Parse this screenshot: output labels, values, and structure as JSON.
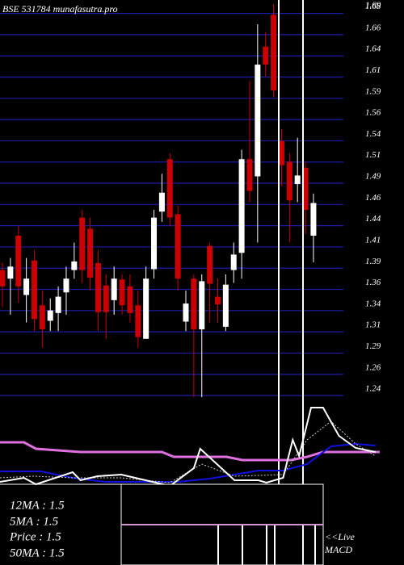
{
  "chart_data": {
    "type": "candlestick",
    "title": "BSE 531784  munafasutra.pro",
    "categories": [
      null,
      null,
      null,
      null,
      null,
      null,
      null,
      null,
      null,
      null,
      null,
      null,
      null,
      null,
      null,
      null,
      null,
      null,
      null,
      null,
      null,
      null,
      null,
      null,
      null,
      null,
      null,
      null,
      null,
      null,
      null,
      null,
      null,
      null,
      null,
      null,
      null,
      null,
      null,
      null
    ],
    "open": [
      1.386,
      1.376,
      1.426,
      1.357,
      1.397,
      1.345,
      1.327,
      1.336,
      1.36,
      1.386,
      1.447,
      1.434,
      1.394,
      1.368,
      1.351,
      1.375,
      1.367,
      1.345,
      1.306,
      1.387,
      1.454,
      1.515,
      1.451,
      1.326,
      1.376,
      1.317,
      1.414,
      1.355,
      1.32,
      1.386,
      1.406,
      1.515,
      1.495,
      1.646,
      1.683,
      1.536,
      1.512,
      1.486,
      1.505,
      1.426
    ],
    "high": [
      1.395,
      1.4,
      1.437,
      1.4,
      1.409,
      1.362,
      1.353,
      1.367,
      1.39,
      1.418,
      1.456,
      1.447,
      1.409,
      1.381,
      1.39,
      1.381,
      1.381,
      1.362,
      1.39,
      1.456,
      1.498,
      1.522,
      1.461,
      1.362,
      1.381,
      1.381,
      1.418,
      1.376,
      1.381,
      1.418,
      1.526,
      1.606,
      1.672,
      1.663,
      1.6955,
      1.55,
      1.522,
      1.54,
      1.512,
      1.475
    ],
    "low": [
      1.343,
      1.334,
      1.348,
      1.325,
      1.315,
      1.296,
      1.315,
      1.315,
      1.334,
      1.376,
      1.371,
      1.362,
      1.315,
      1.306,
      1.334,
      1.334,
      1.325,
      1.296,
      1.306,
      1.376,
      1.442,
      1.437,
      1.362,
      1.315,
      1.238,
      1.238,
      1.325,
      1.325,
      1.315,
      1.371,
      1.376,
      1.465,
      1.418,
      1.611,
      1.587,
      1.484,
      1.418,
      1.465,
      1.428,
      1.395
    ],
    "close": [
      1.367,
      1.39,
      1.367,
      1.376,
      1.329,
      1.317,
      1.339,
      1.355,
      1.376,
      1.396,
      1.386,
      1.377,
      1.337,
      1.337,
      1.376,
      1.345,
      1.336,
      1.308,
      1.376,
      1.447,
      1.476,
      1.447,
      1.376,
      1.347,
      1.317,
      1.373,
      1.37,
      1.346,
      1.369,
      1.404,
      1.515,
      1.478,
      1.625,
      1.625,
      1.595,
      1.508,
      1.467,
      1.496,
      1.456,
      1.464
    ],
    "up_color": "#ffffff",
    "down_color": "#cc0000",
    "grid": true,
    "grid_color": "#1c1ca8",
    "ylim": [
      1.225,
      1.7002
    ],
    "yticks": [
      1.24,
      {
        "value": 1.2647,
        "label": "1.26"
      },
      {
        "value": 1.2894,
        "label": "1.29"
      },
      {
        "value": 1.3141,
        "label": "1.31"
      },
      {
        "value": 1.3388,
        "label": "1.34"
      },
      {
        "value": 1.3635,
        "label": "1.36"
      },
      {
        "value": 1.3882,
        "label": "1.39"
      },
      {
        "value": 1.4129,
        "label": "1.41"
      },
      {
        "value": 1.4376,
        "label": "1.44"
      },
      {
        "value": 1.4623,
        "label": "1.46"
      },
      {
        "value": 1.487,
        "label": "1.49"
      },
      {
        "value": 1.5117,
        "label": "1.51"
      },
      {
        "value": 1.5364,
        "label": "1.54"
      },
      {
        "value": 1.5611,
        "label": "1.56"
      },
      {
        "value": 1.5858,
        "label": "1.59"
      },
      {
        "value": 1.6105,
        "label": "1.61"
      },
      {
        "value": 1.6352,
        "label": "1.64"
      },
      {
        "value": 1.6599,
        "label": "1.66"
      },
      {
        "value": 1.6846,
        "label": "1.68"
      }
    ],
    "high_label": 1.69,
    "indicators": {
      "ylim": [
        -5,
        100
      ],
      "series": [
        {
          "color": "#e070e0",
          "width": 3,
          "x": [
            -0.3,
            2.7,
            4.2,
            9.8,
            20,
            21.5,
            28.1,
            30.1,
            36.2,
            38.2,
            40.2,
            47.3
          ],
          "values": [
            52,
            52,
            44,
            40,
            40,
            34,
            34,
            30,
            30,
            34,
            40,
            40
          ]
        },
        {
          "color": "#1010e0",
          "width": 2,
          "x": [
            -0.3,
            4.8,
            8.8,
            12.9,
            22,
            26,
            32.1,
            35.2,
            38.2,
            41.2,
            44.3,
            46.8
          ],
          "values": [
            16,
            16,
            8,
            3,
            3,
            7,
            17,
            17,
            25,
            47,
            50,
            48
          ]
        },
        {
          "color": "#cccccc",
          "width": 1,
          "dashed": true,
          "x": [
            -0.3,
            3.8,
            8.8,
            14.9,
            21,
            25,
            29.1,
            35.2,
            38.2,
            41.2,
            44.3,
            46.8
          ],
          "values": [
            8,
            10,
            8,
            8,
            2,
            25,
            10,
            12,
            55,
            78,
            50,
            35
          ]
        },
        {
          "color": "#ffffff",
          "width": 2,
          "x": [
            -0.3,
            2.7,
            4.2,
            8.8,
            9.8,
            11.9,
            14.9,
            21,
            24,
            24.8,
            26.9,
            29.1,
            32.1,
            33.1,
            35.2,
            36.4,
            37.2,
            38.7,
            40.2,
            42.2,
            44.3,
            46.8
          ],
          "values": [
            3,
            8,
            0,
            15,
            5,
            10,
            12,
            -2,
            20,
            44,
            25,
            5,
            5,
            2,
            8,
            55,
            35,
            95,
            95,
            60,
            45,
            40
          ]
        }
      ]
    },
    "ma_texts": [
      "12MA : 1.5",
      "5MA : 1.5",
      "Price  : 1.5",
      "50MA : 1.5"
    ],
    "live_text": "<<Live",
    "macd_text": "MACD"
  }
}
